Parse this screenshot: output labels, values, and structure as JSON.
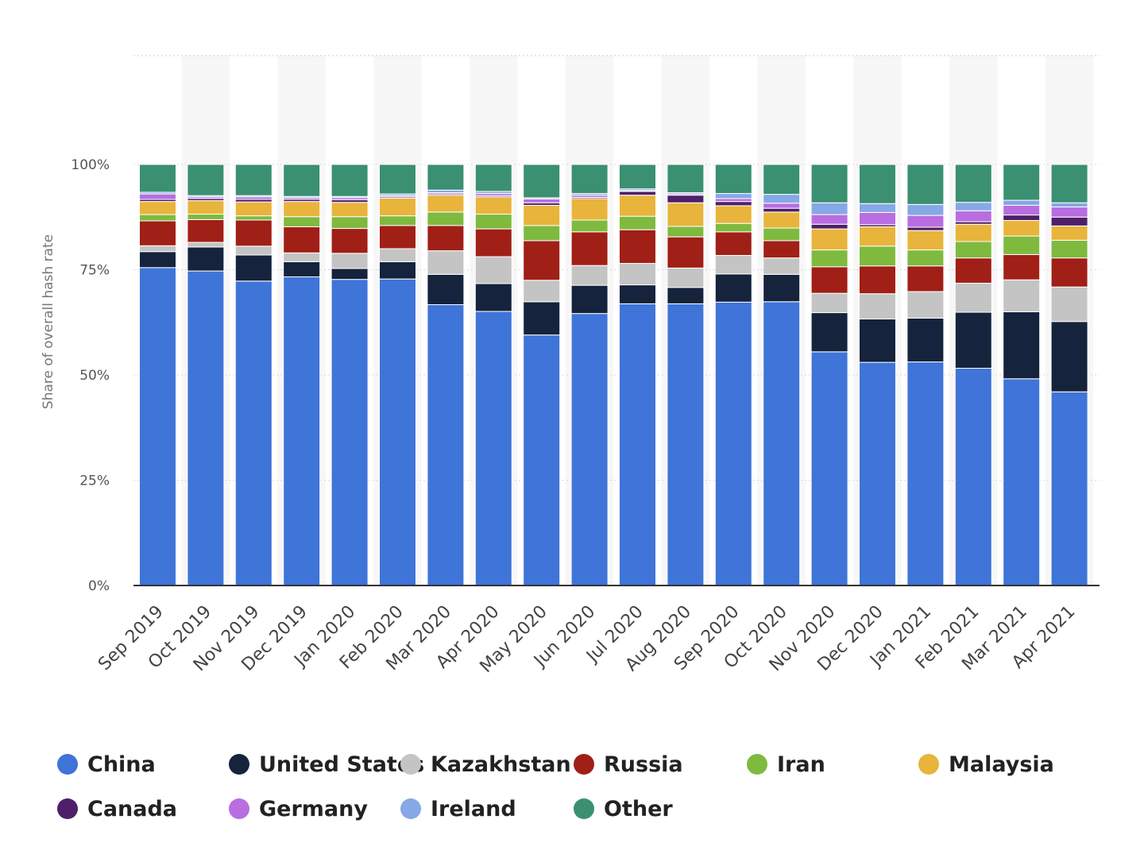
{
  "chart_data": {
    "type": "bar",
    "stacked": true,
    "ylabel": "Share of overall hash rate",
    "ylim": [
      0,
      100
    ],
    "yticks": [
      "0%",
      "25%",
      "50%",
      "75%",
      "100%"
    ],
    "grid": true,
    "legend_position": "bottom",
    "categories": [
      "Sep 2019",
      "Oct 2019",
      "Nov 2019",
      "Dec 2019",
      "Jan 2020",
      "Feb 2020",
      "Mar 2020",
      "Apr 2020",
      "May 2020",
      "Jun 2020",
      "Jul 2020",
      "Aug 2020",
      "Sep 2020",
      "Oct 2020",
      "Nov 2020",
      "Dec 2020",
      "Jan 2021",
      "Feb 2021",
      "Mar 2021",
      "Apr 2021"
    ],
    "series": [
      {
        "name": "China",
        "color": "#3f74d8",
        "values": [
          75.5,
          74.7,
          72.3,
          73.3,
          72.7,
          72.8,
          66.7,
          65.1,
          59.5,
          64.6,
          66.9,
          66.9,
          67.3,
          67.4,
          55.5,
          53.0,
          53.1,
          51.6,
          49.1,
          46.0
        ]
      },
      {
        "name": "United States",
        "color": "#15233c",
        "values": [
          3.8,
          5.7,
          6.2,
          3.6,
          2.6,
          4.1,
          7.2,
          6.6,
          7.9,
          6.7,
          4.5,
          3.9,
          6.7,
          6.5,
          9.3,
          10.3,
          10.4,
          13.3,
          15.9,
          16.7
        ]
      },
      {
        "name": "Kazakhstan",
        "color": "#c4c4c4",
        "values": [
          1.4,
          1.1,
          2.1,
          2.1,
          3.6,
          3.1,
          5.6,
          6.4,
          5.1,
          4.7,
          5.1,
          4.6,
          4.4,
          3.9,
          4.6,
          6.0,
          6.3,
          6.9,
          7.6,
          8.2
        ]
      },
      {
        "name": "Russia",
        "color": "#a01f16",
        "values": [
          5.9,
          5.4,
          6.2,
          6.2,
          5.9,
          5.5,
          6.0,
          6.6,
          9.4,
          8.0,
          8.0,
          7.4,
          5.6,
          4.1,
          6.3,
          6.6,
          6.1,
          6.0,
          6.0,
          6.9
        ]
      },
      {
        "name": "Iran",
        "color": "#7fba3f",
        "values": [
          1.5,
          1.3,
          1.0,
          2.4,
          2.8,
          2.3,
          3.2,
          3.5,
          3.6,
          2.8,
          3.2,
          2.5,
          2.0,
          3.0,
          4.0,
          4.7,
          3.8,
          3.9,
          4.4,
          4.2
        ]
      },
      {
        "name": "Malaysia",
        "color": "#e8b43c",
        "values": [
          3.1,
          3.2,
          3.3,
          3.6,
          3.4,
          4.2,
          4.0,
          4.1,
          4.8,
          5.1,
          5.0,
          5.6,
          4.2,
          3.8,
          5.0,
          4.6,
          4.6,
          4.1,
          3.7,
          3.4
        ]
      },
      {
        "name": "Canada",
        "color": "#4e2068",
        "values": [
          0.5,
          0.5,
          0.6,
          0.5,
          0.6,
          0.3,
          0.3,
          0.3,
          0.6,
          0.3,
          0.9,
          1.8,
          1.0,
          0.9,
          1.1,
          0.5,
          0.8,
          0.6,
          1.3,
          2.1
        ]
      },
      {
        "name": "Germany",
        "color": "#b86ee0",
        "values": [
          1.3,
          0.4,
          0.6,
          0.4,
          0.5,
          0.3,
          0.3,
          0.5,
          0.9,
          0.5,
          0.2,
          0.3,
          0.7,
          1.2,
          2.3,
          2.9,
          2.8,
          2.6,
          2.3,
          2.4
        ]
      },
      {
        "name": "Ireland",
        "color": "#86a8e6",
        "values": [
          0.4,
          0.3,
          0.3,
          0.3,
          0.3,
          0.4,
          0.6,
          0.5,
          0.3,
          0.4,
          0.4,
          0.3,
          1.2,
          2.1,
          2.8,
          2.1,
          2.6,
          2.0,
          1.2,
          1.0
        ]
      },
      {
        "name": "Other",
        "color": "#3a9070",
        "values": [
          6.6,
          7.4,
          7.4,
          7.6,
          7.6,
          7.0,
          6.1,
          6.4,
          7.9,
          6.9,
          5.8,
          6.7,
          6.9,
          7.1,
          9.1,
          9.3,
          9.5,
          9.0,
          8.5,
          9.1
        ]
      }
    ]
  }
}
